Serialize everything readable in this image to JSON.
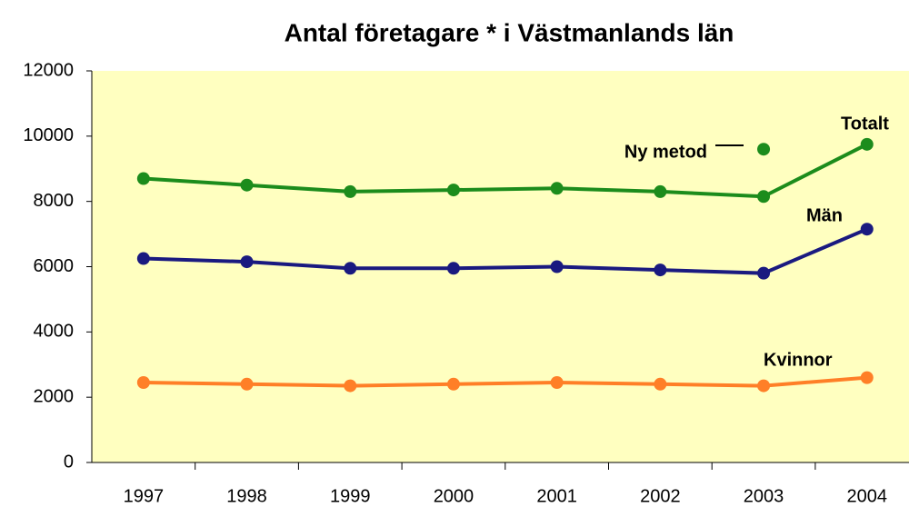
{
  "chart_data": {
    "type": "line",
    "title": "Antal företagare * i Västmanlands län",
    "categories": [
      "1997",
      "1998",
      "1999",
      "2000",
      "2001",
      "2002",
      "2003",
      "2004"
    ],
    "series": [
      {
        "name": "Totalt",
        "color": "#1c8c1c",
        "values": [
          8700,
          8500,
          8300,
          8350,
          8400,
          8300,
          8150,
          9750
        ]
      },
      {
        "name": "Män",
        "color": "#1a1a80",
        "values": [
          6250,
          6150,
          5950,
          5950,
          6000,
          5900,
          5800,
          7150
        ]
      },
      {
        "name": "Kvinnor",
        "color": "#ff7f27",
        "values": [
          2450,
          2400,
          2350,
          2400,
          2450,
          2400,
          2350,
          2600
        ]
      },
      {
        "name": "Ny metod",
        "color": "#1c8c1c",
        "values": [
          null,
          null,
          null,
          null,
          null,
          null,
          9600,
          null
        ]
      }
    ],
    "ylim": [
      0,
      12000
    ],
    "yticks": [
      0,
      2000,
      4000,
      6000,
      8000,
      10000,
      12000
    ]
  }
}
